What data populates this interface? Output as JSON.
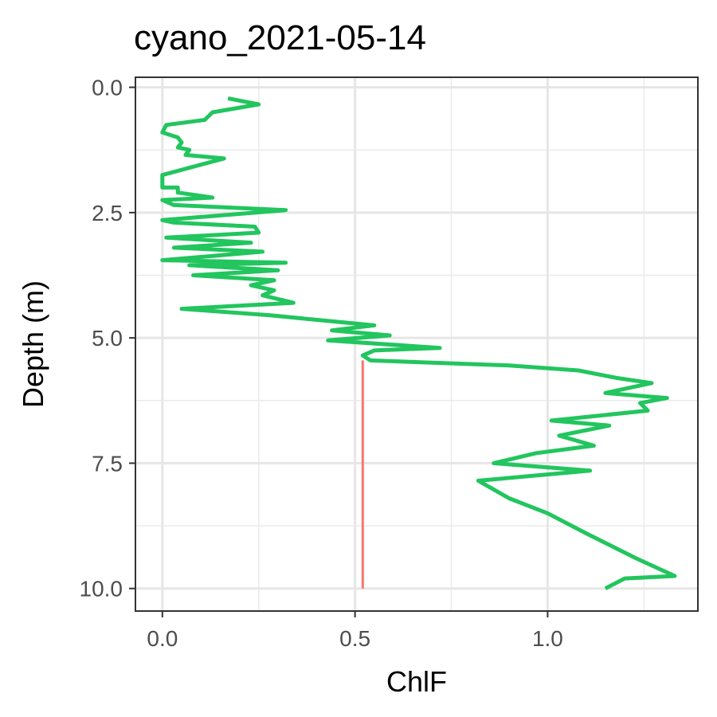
{
  "chart_data": {
    "type": "line",
    "title": "cyano_2021-05-14",
    "xlabel": "ChlF",
    "ylabel": "Depth (m)",
    "xlim": [
      -0.07,
      1.39
    ],
    "ylim": [
      -0.2,
      10.45
    ],
    "y_reversed": true,
    "grid": true,
    "legend": "none",
    "x_ticks": [
      {
        "value": 0.0,
        "label": "0.0"
      },
      {
        "value": 0.5,
        "label": "0.5"
      },
      {
        "value": 1.0,
        "label": "1.0"
      }
    ],
    "y_ticks": [
      {
        "value": 0.0,
        "label": "0.0"
      },
      {
        "value": 2.5,
        "label": "2.5"
      },
      {
        "value": 5.0,
        "label": "5.0"
      },
      {
        "value": 7.5,
        "label": "7.5"
      },
      {
        "value": 10.0,
        "label": "10.0"
      }
    ],
    "series": [
      {
        "color": "#22c55e",
        "points": [
          [
            0.17,
            0.22
          ],
          [
            0.25,
            0.34
          ],
          [
            0.13,
            0.5
          ],
          [
            0.11,
            0.65
          ],
          [
            0.01,
            0.75
          ],
          [
            0.0,
            0.9
          ],
          [
            0.04,
            1.0
          ],
          [
            0.05,
            1.1
          ],
          [
            0.04,
            1.2
          ],
          [
            0.07,
            1.25
          ],
          [
            0.06,
            1.35
          ],
          [
            0.16,
            1.42
          ],
          [
            0.0,
            1.75
          ],
          [
            0.0,
            2.0
          ],
          [
            0.04,
            2.0
          ],
          [
            0.04,
            2.1
          ],
          [
            0.13,
            2.2
          ],
          [
            0.0,
            2.25
          ],
          [
            0.03,
            2.35
          ],
          [
            0.32,
            2.45
          ],
          [
            0.0,
            2.65
          ],
          [
            0.03,
            2.7
          ],
          [
            0.24,
            2.78
          ],
          [
            0.25,
            2.9
          ],
          [
            0.01,
            3.0
          ],
          [
            0.23,
            3.1
          ],
          [
            0.03,
            3.2
          ],
          [
            0.26,
            3.28
          ],
          [
            0.0,
            3.45
          ],
          [
            0.32,
            3.5
          ],
          [
            0.07,
            3.55
          ],
          [
            0.3,
            3.65
          ],
          [
            0.08,
            3.75
          ],
          [
            0.29,
            3.85
          ],
          [
            0.23,
            3.95
          ],
          [
            0.29,
            4.05
          ],
          [
            0.26,
            4.15
          ],
          [
            0.34,
            4.3
          ],
          [
            0.05,
            4.42
          ],
          [
            0.28,
            4.55
          ],
          [
            0.55,
            4.75
          ],
          [
            0.44,
            4.85
          ],
          [
            0.59,
            4.95
          ],
          [
            0.43,
            5.05
          ],
          [
            0.72,
            5.2
          ],
          [
            0.55,
            5.25
          ],
          [
            0.52,
            5.35
          ],
          [
            0.54,
            5.45
          ],
          [
            0.9,
            5.55
          ],
          [
            1.08,
            5.65
          ],
          [
            1.18,
            5.8
          ],
          [
            1.27,
            5.9
          ],
          [
            1.15,
            6.1
          ],
          [
            1.31,
            6.2
          ],
          [
            1.24,
            6.3
          ],
          [
            1.26,
            6.45
          ],
          [
            1.01,
            6.65
          ],
          [
            1.16,
            6.75
          ],
          [
            1.03,
            6.95
          ],
          [
            1.12,
            7.15
          ],
          [
            0.97,
            7.3
          ],
          [
            0.86,
            7.5
          ],
          [
            1.11,
            7.65
          ],
          [
            0.82,
            7.85
          ],
          [
            0.9,
            8.2
          ],
          [
            1.0,
            8.5
          ],
          [
            1.1,
            8.9
          ],
          [
            1.23,
            9.4
          ],
          [
            1.33,
            9.75
          ],
          [
            1.2,
            9.8
          ],
          [
            1.15,
            10.0
          ]
        ]
      },
      {
        "color": "#f8766d",
        "points": [
          [
            0.52,
            5.45
          ],
          [
            0.52,
            10.0
          ]
        ]
      }
    ]
  }
}
